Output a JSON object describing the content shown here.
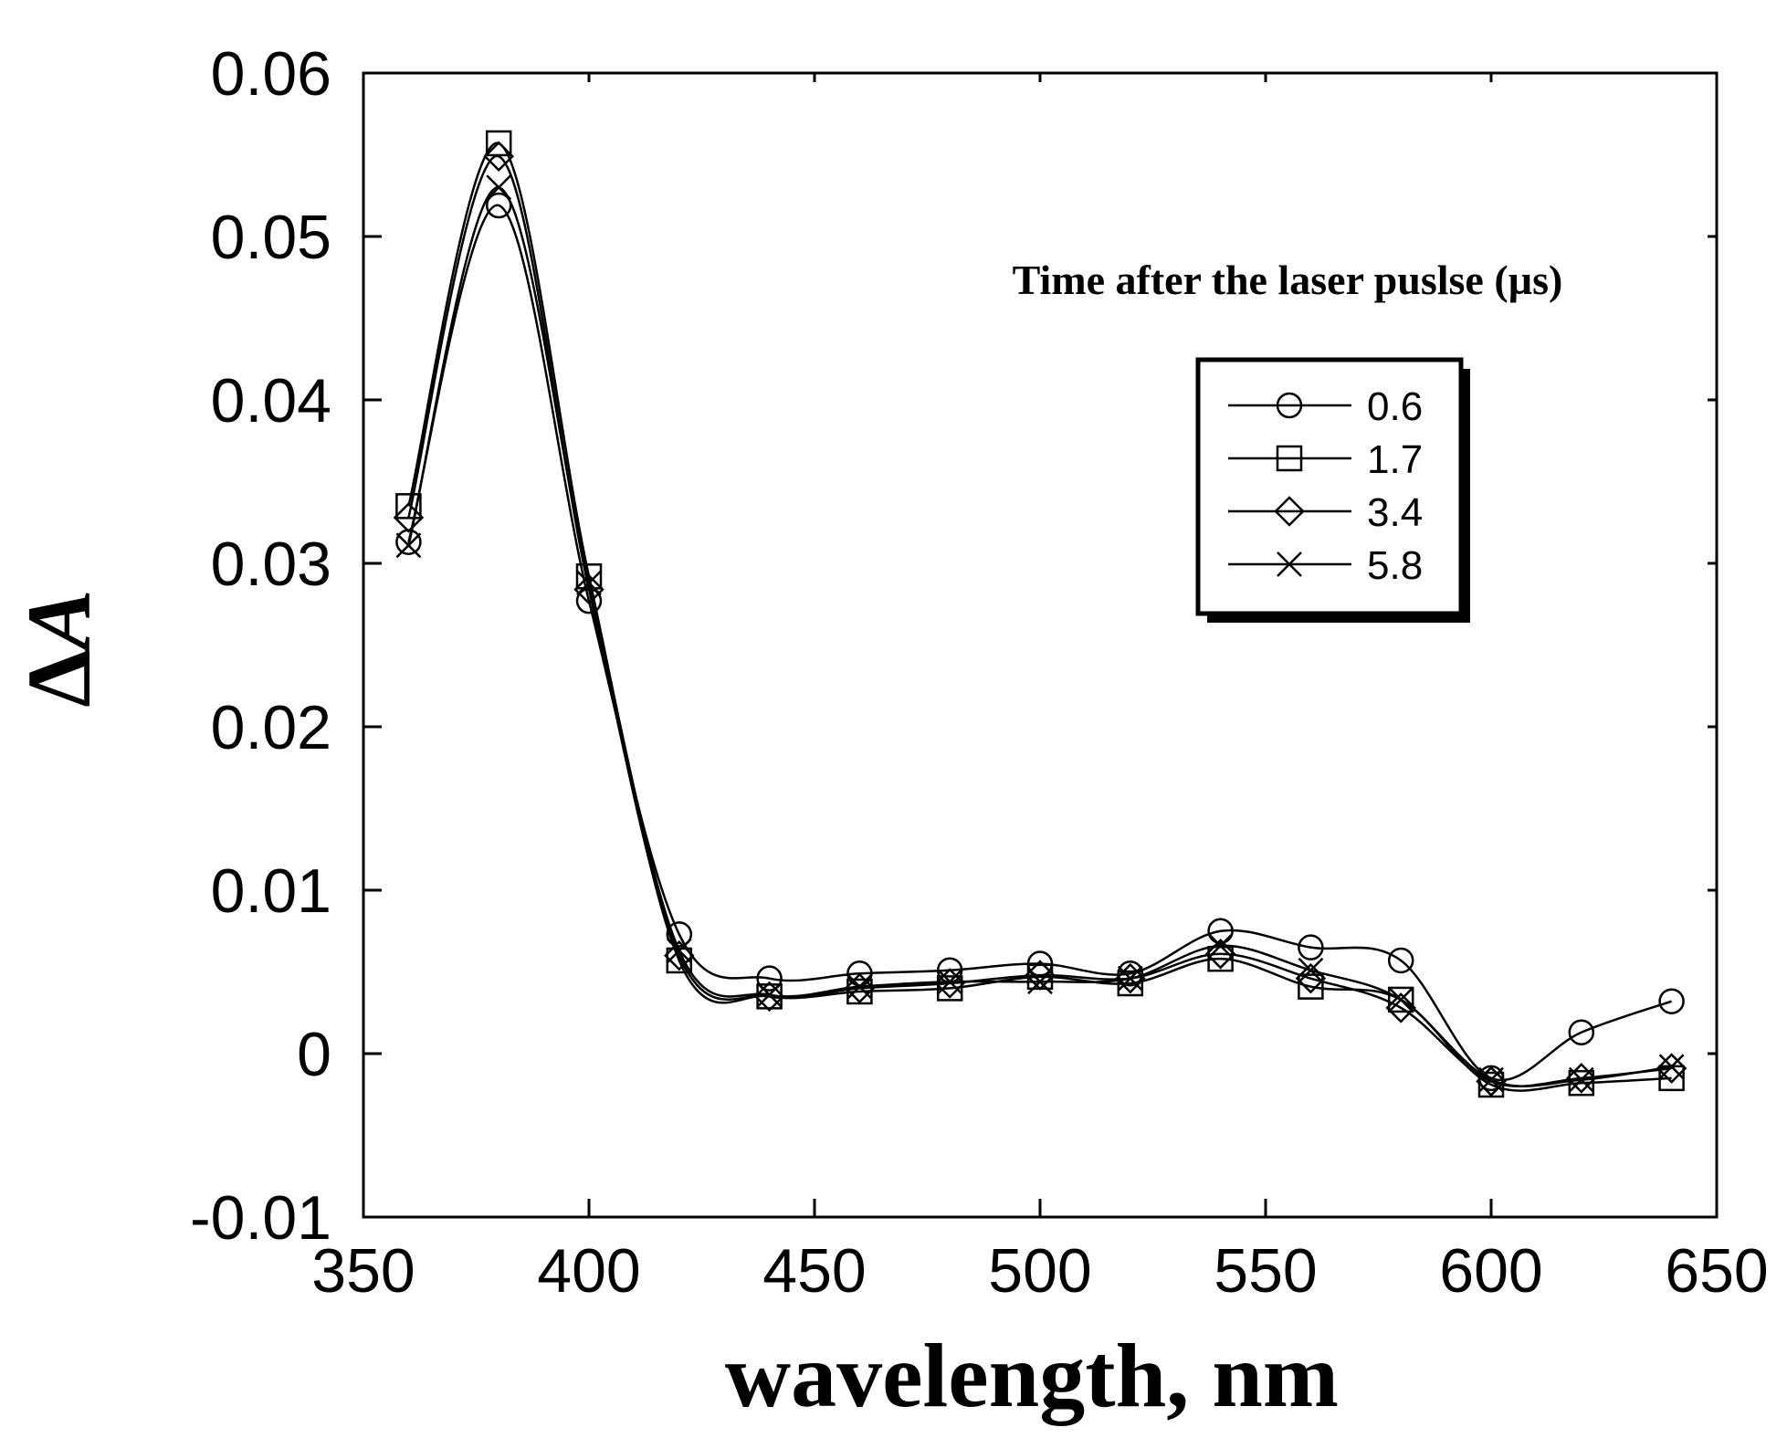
{
  "chart_data": {
    "type": "line",
    "xlabel": "wavelength, nm",
    "ylabel_prefix": "Δ",
    "ylabel_var": "A",
    "xlim": [
      350,
      650
    ],
    "ylim": [
      -0.01,
      0.06
    ],
    "xticks": [
      350,
      400,
      450,
      500,
      550,
      600,
      650
    ],
    "xtick_labels": [
      "350",
      "400",
      "450",
      "500",
      "550",
      "600",
      "650"
    ],
    "yticks": [
      -0.01,
      0,
      0.01,
      0.02,
      0.03,
      0.04,
      0.05,
      0.06
    ],
    "ytick_labels": [
      "-0.01",
      "0",
      "0.01",
      "0.02",
      "0.03",
      "0.04",
      "0.05",
      "0.06"
    ],
    "grid": false,
    "legend_title": "Time after the laser puslse (µs)",
    "legend_position": "upper-right",
    "x": [
      360,
      380,
      400,
      420,
      440,
      460,
      480,
      500,
      520,
      540,
      560,
      580,
      600,
      620,
      640
    ],
    "series": [
      {
        "name": "0.6",
        "marker": "circle",
        "values": [
          0.0313,
          0.0519,
          0.0277,
          0.0073,
          0.0046,
          0.0049,
          0.0051,
          0.0055,
          0.0049,
          0.0075,
          0.0065,
          0.0057,
          -0.0015,
          0.0013,
          0.0032
        ]
      },
      {
        "name": "1.7",
        "marker": "square",
        "values": [
          0.0335,
          0.0557,
          0.0292,
          0.0057,
          0.0035,
          0.0038,
          0.004,
          0.0047,
          0.0043,
          0.0058,
          0.0041,
          0.0033,
          -0.0019,
          -0.0018,
          -0.0015
        ]
      },
      {
        "name": "3.4",
        "marker": "diamond",
        "values": [
          0.0328,
          0.0549,
          0.0284,
          0.006,
          0.0035,
          0.004,
          0.0043,
          0.0048,
          0.0046,
          0.0061,
          0.0046,
          0.0028,
          -0.0017,
          -0.0015,
          -0.0009
        ]
      },
      {
        "name": "5.8",
        "marker": "x",
        "values": [
          0.0311,
          0.053,
          0.0288,
          0.0063,
          0.0036,
          0.0041,
          0.0044,
          0.0044,
          0.0046,
          0.0066,
          0.0051,
          0.0033,
          -0.0016,
          -0.0016,
          -0.0008
        ]
      }
    ]
  }
}
